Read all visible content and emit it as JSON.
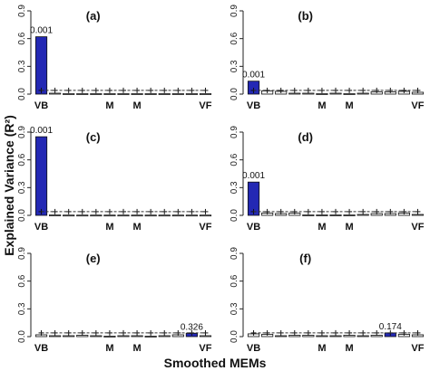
{
  "figure": {
    "ylabel": "Explained Variance (R²)",
    "xlabel": "Smoothed MEMs"
  },
  "colors": {
    "highlight": "#2328b4",
    "normal_fill": "#f2f2f2",
    "threshold_line": "#333333",
    "axis": "#222222"
  },
  "chart_data": [
    {
      "panel": "(a)",
      "type": "bar",
      "ylim": [
        0,
        0.9
      ],
      "yticks": [
        "0.0",
        "0.3",
        "0.6",
        "0.9"
      ],
      "categories": [
        "VB",
        "",
        "",
        "",
        "",
        "M",
        "",
        "M",
        "",
        "",
        "",
        "",
        "VF"
      ],
      "values": [
        0.62,
        0.01,
        0.005,
        0.005,
        0.005,
        0.005,
        0.005,
        0.005,
        0.005,
        0.005,
        0.005,
        0.005,
        0.005
      ],
      "threshold": [
        0.04,
        0.04,
        0.04,
        0.04,
        0.04,
        0.04,
        0.04,
        0.04,
        0.04,
        0.04,
        0.04,
        0.04,
        0.04
      ],
      "highlight_index": 0,
      "highlight_label": "0.001"
    },
    {
      "panel": "(b)",
      "type": "bar",
      "ylim": [
        0,
        0.9
      ],
      "yticks": [
        "0.0",
        "0.3",
        "0.6",
        "0.9"
      ],
      "categories": [
        "VB",
        "",
        "",
        "",
        "",
        "M",
        "",
        "M",
        "",
        "",
        "",
        "",
        "VF"
      ],
      "values": [
        0.14,
        0.035,
        0.03,
        0.01,
        0.01,
        0.005,
        0.01,
        0.005,
        0.01,
        0.025,
        0.025,
        0.03,
        0.02
      ],
      "threshold": [
        0.04,
        0.04,
        0.04,
        0.04,
        0.04,
        0.04,
        0.04,
        0.04,
        0.04,
        0.04,
        0.04,
        0.04,
        0.04
      ],
      "highlight_index": 0,
      "highlight_label": "0.001"
    },
    {
      "panel": "(c)",
      "type": "bar",
      "ylim": [
        0,
        0.9
      ],
      "yticks": [
        "0.0",
        "0.3",
        "0.6",
        "0.9"
      ],
      "categories": [
        "VB",
        "",
        "",
        "",
        "",
        "M",
        "",
        "M",
        "",
        "",
        "",
        "",
        "VF"
      ],
      "values": [
        0.85,
        0.005,
        0.003,
        0.003,
        0.003,
        0.003,
        0.003,
        0.003,
        0.003,
        0.003,
        0.003,
        0.003,
        0.003
      ],
      "threshold": [
        0.04,
        0.04,
        0.04,
        0.04,
        0.04,
        0.04,
        0.04,
        0.04,
        0.04,
        0.04,
        0.04,
        0.04,
        0.04
      ],
      "highlight_index": 0,
      "highlight_label": "0.001"
    },
    {
      "panel": "(d)",
      "type": "bar",
      "ylim": [
        0,
        0.9
      ],
      "yticks": [
        "0.0",
        "0.3",
        "0.6",
        "0.9"
      ],
      "categories": [
        "VB",
        "",
        "",
        "",
        "",
        "M",
        "",
        "M",
        "",
        "",
        "",
        "",
        "VF"
      ],
      "values": [
        0.36,
        0.025,
        0.02,
        0.025,
        0.005,
        0.005,
        0.005,
        0.005,
        0.01,
        0.02,
        0.02,
        0.025,
        0.01
      ],
      "threshold": [
        0.04,
        0.04,
        0.04,
        0.04,
        0.04,
        0.04,
        0.04,
        0.04,
        0.04,
        0.04,
        0.04,
        0.04,
        0.04
      ],
      "highlight_index": 0,
      "highlight_label": "0.001"
    },
    {
      "panel": "(e)",
      "type": "bar",
      "ylim": [
        0,
        0.9
      ],
      "yticks": [
        "0.0",
        "0.3",
        "0.6",
        "0.9"
      ],
      "categories": [
        "VB",
        "",
        "",
        "",
        "",
        "M",
        "",
        "M",
        "",
        "",
        "",
        "",
        "VF"
      ],
      "values": [
        0.02,
        0.01,
        0.01,
        0.015,
        0.01,
        0.005,
        0.01,
        0.01,
        0.005,
        0.01,
        0.02,
        0.035,
        0.01
      ],
      "threshold": [
        0.04,
        0.04,
        0.04,
        0.04,
        0.04,
        0.04,
        0.04,
        0.04,
        0.04,
        0.04,
        0.04,
        0.04,
        0.04
      ],
      "highlight_index": 11,
      "highlight_label": "0.326"
    },
    {
      "panel": "(f)",
      "type": "bar",
      "ylim": [
        0,
        0.9
      ],
      "yticks": [
        "0.0",
        "0.3",
        "0.6",
        "0.9"
      ],
      "categories": [
        "VB",
        "",
        "",
        "",
        "",
        "M",
        "",
        "M",
        "",
        "",
        "",
        "",
        "VF"
      ],
      "values": [
        0.03,
        0.025,
        0.01,
        0.015,
        0.015,
        0.01,
        0.01,
        0.015,
        0.01,
        0.015,
        0.04,
        0.025,
        0.02
      ],
      "threshold": [
        0.04,
        0.04,
        0.04,
        0.04,
        0.04,
        0.04,
        0.04,
        0.04,
        0.04,
        0.04,
        0.04,
        0.04,
        0.04
      ],
      "highlight_index": 10,
      "highlight_label": "0.174"
    }
  ]
}
